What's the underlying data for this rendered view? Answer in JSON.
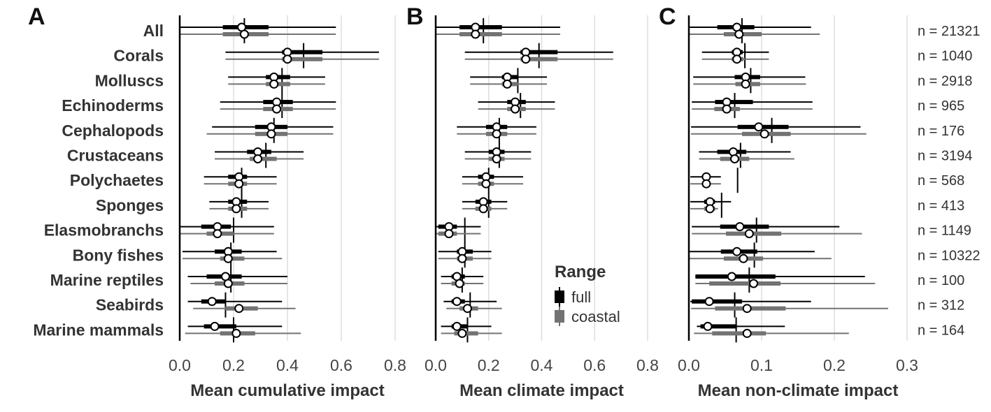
{
  "chart_data": {
    "type": "interval",
    "groups": [
      "All",
      "Corals",
      "Molluscs",
      "Echinoderms",
      "Cephalopods",
      "Crustaceans",
      "Polychaetes",
      "Sponges",
      "Elasmobranchs",
      "Bony fishes",
      "Marine reptiles",
      "Seabirds",
      "Marine mammals"
    ],
    "n_labels": [
      "n = 21321",
      "n = 1040",
      "n = 2918",
      "n = 965",
      "n = 176",
      "n = 3194",
      "n = 568",
      "n = 413",
      "n = 1149",
      "n = 10322",
      "n = 100",
      "n = 312",
      "n = 164"
    ],
    "legend": {
      "title": "Range",
      "items": [
        {
          "label": "full",
          "color": "#000000"
        },
        {
          "label": "coastal",
          "color": "#737373"
        }
      ]
    },
    "panels": [
      {
        "letter": "A",
        "xlabel": "Mean cumulative impact",
        "xlim": [
          0,
          0.8
        ],
        "ticks": [
          "0.0",
          "0.2",
          "0.4",
          "0.6",
          "0.8"
        ],
        "tick_values": [
          0,
          0.2,
          0.4,
          0.6,
          0.8
        ],
        "series": [
          {
            "name": "full",
            "intervals": [
              [
                0.24,
                0.0,
                0.58,
                0.16,
                0.33,
                0.23
              ],
              [
                0.46,
                0.17,
                0.74,
                0.38,
                0.53,
                0.4
              ],
              [
                0.38,
                0.18,
                0.54,
                0.32,
                0.41,
                0.35
              ],
              [
                0.38,
                0.15,
                0.58,
                0.31,
                0.42,
                0.36
              ],
              [
                0.35,
                0.12,
                0.57,
                0.28,
                0.4,
                0.34
              ],
              [
                0.32,
                0.13,
                0.46,
                0.25,
                0.34,
                0.29
              ],
              [
                0.23,
                0.09,
                0.36,
                0.18,
                0.25,
                0.22
              ],
              [
                0.23,
                0.11,
                0.33,
                0.18,
                0.25,
                0.21
              ],
              [
                0.2,
                0.0,
                0.35,
                0.08,
                0.19,
                0.14
              ],
              [
                0.19,
                0.01,
                0.36,
                0.13,
                0.23,
                0.18
              ],
              [
                0.19,
                0.03,
                0.4,
                0.1,
                0.23,
                0.17
              ],
              [
                0.17,
                0.03,
                0.38,
                0.08,
                0.17,
                0.12
              ],
              [
                0.2,
                0.03,
                0.38,
                0.09,
                0.21,
                0.13
              ]
            ]
          },
          {
            "name": "coastal",
            "intervals": [
              [
                0.24,
                0.0,
                0.58,
                0.16,
                0.33,
                0.24
              ],
              [
                0.46,
                0.17,
                0.74,
                0.38,
                0.53,
                0.4
              ],
              [
                0.38,
                0.18,
                0.54,
                0.32,
                0.41,
                0.35
              ],
              [
                0.38,
                0.15,
                0.58,
                0.31,
                0.42,
                0.36
              ],
              [
                0.35,
                0.1,
                0.57,
                0.28,
                0.4,
                0.34
              ],
              [
                0.32,
                0.13,
                0.46,
                0.26,
                0.36,
                0.29
              ],
              [
                0.23,
                0.09,
                0.36,
                0.18,
                0.25,
                0.22
              ],
              [
                0.23,
                0.11,
                0.33,
                0.18,
                0.25,
                0.21
              ],
              [
                0.2,
                0.0,
                0.35,
                0.1,
                0.2,
                0.14
              ],
              [
                0.19,
                0.01,
                0.38,
                0.15,
                0.24,
                0.18
              ],
              [
                0.19,
                0.04,
                0.4,
                0.13,
                0.24,
                0.18
              ],
              [
                0.17,
                0.05,
                0.43,
                0.17,
                0.29,
                0.22
              ],
              [
                0.2,
                0.02,
                0.45,
                0.15,
                0.28,
                0.21
              ]
            ]
          }
        ]
      },
      {
        "letter": "B",
        "xlabel": "Mean climate impact",
        "xlim": [
          0,
          0.8
        ],
        "ticks": [
          "0.0",
          "0.2",
          "0.4",
          "0.6",
          "0.8"
        ],
        "tick_values": [
          0,
          0.2,
          0.4,
          0.6,
          0.8
        ],
        "series": [
          {
            "name": "full",
            "intervals": [
              [
                0.18,
                0.0,
                0.47,
                0.09,
                0.25,
                0.15
              ],
              [
                0.39,
                0.11,
                0.67,
                0.32,
                0.46,
                0.34
              ],
              [
                0.31,
                0.13,
                0.42,
                0.25,
                0.31,
                0.27
              ],
              [
                0.32,
                0.16,
                0.45,
                0.27,
                0.34,
                0.3
              ],
              [
                0.24,
                0.08,
                0.38,
                0.19,
                0.27,
                0.23
              ],
              [
                0.24,
                0.11,
                0.36,
                0.2,
                0.26,
                0.23
              ],
              [
                0.2,
                0.1,
                0.33,
                0.16,
                0.22,
                0.19
              ],
              [
                0.2,
                0.1,
                0.27,
                0.15,
                0.21,
                0.18
              ],
              [
                0.11,
                0.0,
                0.17,
                0.01,
                0.08,
                0.05
              ],
              [
                0.11,
                0.01,
                0.21,
                0.08,
                0.14,
                0.1
              ],
              [
                0.1,
                0.02,
                0.18,
                0.06,
                0.11,
                0.08
              ],
              [
                0.13,
                0.03,
                0.23,
                0.06,
                0.11,
                0.08
              ],
              [
                0.12,
                0.02,
                0.21,
                0.06,
                0.12,
                0.08
              ]
            ]
          },
          {
            "name": "coastal",
            "intervals": [
              [
                0.18,
                0.0,
                0.47,
                0.09,
                0.25,
                0.15
              ],
              [
                0.39,
                0.11,
                0.67,
                0.32,
                0.46,
                0.34
              ],
              [
                0.31,
                0.13,
                0.42,
                0.25,
                0.31,
                0.27
              ],
              [
                0.32,
                0.16,
                0.45,
                0.27,
                0.34,
                0.3
              ],
              [
                0.24,
                0.08,
                0.38,
                0.19,
                0.27,
                0.23
              ],
              [
                0.24,
                0.11,
                0.36,
                0.2,
                0.26,
                0.23
              ],
              [
                0.2,
                0.1,
                0.33,
                0.16,
                0.22,
                0.19
              ],
              [
                0.2,
                0.1,
                0.27,
                0.15,
                0.21,
                0.18
              ],
              [
                0.11,
                0.0,
                0.17,
                0.01,
                0.08,
                0.05
              ],
              [
                0.11,
                0.01,
                0.21,
                0.08,
                0.14,
                0.1
              ],
              [
                0.1,
                0.02,
                0.18,
                0.06,
                0.11,
                0.09
              ],
              [
                0.14,
                0.04,
                0.25,
                0.09,
                0.16,
                0.12
              ],
              [
                0.12,
                0.02,
                0.25,
                0.07,
                0.16,
                0.1
              ]
            ]
          }
        ]
      },
      {
        "letter": "C",
        "xlabel": "Mean non-climate impact",
        "xlim": [
          0,
          0.3
        ],
        "ticks": [
          "0.0",
          "0.1",
          "0.2",
          "0.3"
        ],
        "tick_values": [
          0,
          0.1,
          0.2,
          0.3
        ],
        "series": [
          {
            "name": "full",
            "intervals": [
              [
                0.073,
                0.0,
                0.168,
                0.039,
                0.09,
                0.066
              ],
              [
                0.077,
                0.018,
                0.11,
                0.059,
                0.074,
                0.066
              ],
              [
                0.085,
                0.006,
                0.16,
                0.063,
                0.098,
                0.078
              ],
              [
                0.063,
                0.004,
                0.17,
                0.036,
                0.088,
                0.052
              ],
              [
                0.114,
                0.003,
                0.236,
                0.067,
                0.137,
                0.096
              ],
              [
                0.071,
                0.014,
                0.14,
                0.039,
                0.079,
                0.061
              ],
              [
                0.067,
                0.002,
                0.044,
                0.018,
                0.029,
                0.024
              ],
              [
                0.045,
                0.002,
                0.058,
                0.021,
                0.036,
                0.029
              ],
              [
                0.093,
                0.004,
                0.207,
                0.043,
                0.11,
                0.07
              ],
              [
                0.09,
                0.001,
                0.173,
                0.044,
                0.094,
                0.066
              ],
              [
                0.083,
                0.009,
                0.242,
                0.009,
                0.119,
                0.059
              ],
              [
                0.063,
                0.002,
                0.168,
                0.004,
                0.073,
                0.028
              ],
              [
                0.065,
                0.011,
                0.132,
                0.016,
                0.066,
                0.026
              ]
            ]
          },
          {
            "name": "coastal",
            "intervals": [
              [
                0.073,
                0.0,
                0.18,
                0.048,
                0.1,
                0.069
              ],
              [
                0.077,
                0.018,
                0.11,
                0.059,
                0.075,
                0.066
              ],
              [
                0.085,
                0.006,
                0.161,
                0.064,
                0.098,
                0.078
              ],
              [
                0.063,
                0.004,
                0.17,
                0.035,
                0.07,
                0.052
              ],
              [
                0.114,
                0.003,
                0.244,
                0.073,
                0.14,
                0.104
              ],
              [
                0.071,
                0.014,
                0.145,
                0.043,
                0.083,
                0.063
              ],
              [
                0.067,
                0.002,
                0.044,
                0.018,
                0.029,
                0.024
              ],
              [
                0.045,
                0.002,
                0.04,
                0.021,
                0.036,
                0.029
              ],
              [
                0.093,
                0.004,
                0.238,
                0.051,
                0.127,
                0.083
              ],
              [
                0.09,
                0.001,
                0.196,
                0.048,
                0.102,
                0.075
              ],
              [
                0.083,
                0.009,
                0.256,
                0.028,
                0.126,
                0.089
              ],
              [
                0.1,
                0.003,
                0.274,
                0.036,
                0.133,
                0.08
              ],
              [
                0.103,
                0.007,
                0.22,
                0.032,
                0.106,
                0.08
              ]
            ]
          }
        ]
      }
    ],
    "interval_fields": [
      "median_tick",
      "whisker_low",
      "whisker_high",
      "box_low",
      "box_high",
      "mean"
    ],
    "grid": true
  }
}
